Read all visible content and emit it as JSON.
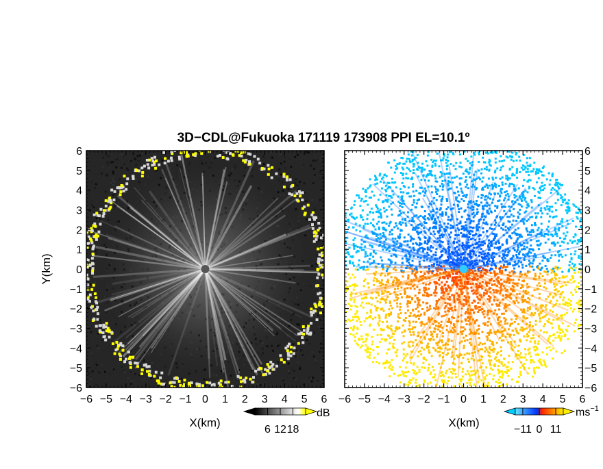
{
  "title": "3D−CDL@Fukuoka 171119 173908 PPI EL=10.1º",
  "chart_data": [
    {
      "type": "heatmap",
      "panel": "reflectivity",
      "xlabel": "X(km)",
      "ylabel": "Y(km)",
      "xlim": [
        -6,
        6
      ],
      "ylim": [
        -6,
        6
      ],
      "xticks": [
        "−6",
        "−5",
        "−4",
        "−3",
        "−2",
        "−1",
        "0",
        "1",
        "2",
        "3",
        "4",
        "5",
        "6"
      ],
      "yticks": [
        "6",
        "5",
        "4",
        "3",
        "2",
        "1",
        "0",
        "−1",
        "−2",
        "−3",
        "−4",
        "−5",
        "−6"
      ],
      "colorbar": {
        "unit": "dB",
        "ticks": [
          "6",
          "12",
          "18"
        ],
        "range": [
          0,
          24
        ],
        "colors": [
          "#000000",
          "#ffffff",
          "#ffff00"
        ]
      },
      "echo_boundary_radius_km": 5.9,
      "echo_boundary_color": "#ffff00",
      "center": [
        0,
        0
      ]
    },
    {
      "type": "heatmap",
      "panel": "doppler_velocity",
      "xlabel": "X(km)",
      "xlim": [
        -6,
        6
      ],
      "ylim": [
        -6,
        6
      ],
      "xticks": [
        "−6",
        "−5",
        "−4",
        "−3",
        "−2",
        "−1",
        "0",
        "1",
        "2",
        "3",
        "4",
        "5",
        "6"
      ],
      "yticks": [
        "6",
        "5",
        "4",
        "3",
        "2",
        "1",
        "0",
        "−1",
        "−2",
        "−3",
        "−4",
        "−5",
        "−6"
      ],
      "colorbar": {
        "unit": "ms",
        "unit_exponent": "−1",
        "ticks": [
          "−11",
          "0",
          "11"
        ],
        "range": [
          -16,
          16
        ],
        "colors": [
          "#00ccff",
          "#0033ff",
          "#ff2200",
          "#ffee00"
        ]
      },
      "center": [
        0,
        0
      ]
    }
  ]
}
